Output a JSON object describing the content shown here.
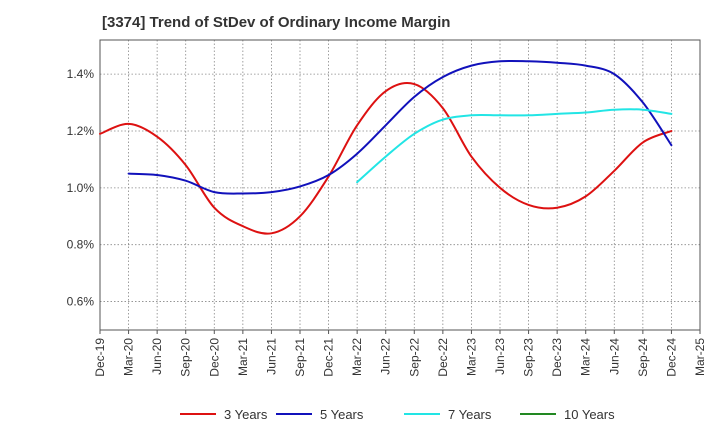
{
  "title": "[3374]  Trend of StDev of Ordinary Income Margin",
  "chart_data": {
    "type": "line",
    "title": "[3374]  Trend of StDev of Ordinary Income Margin",
    "xlabel": "",
    "ylabel": "",
    "x_tick_labels": [
      "Dec-19",
      "Mar-20",
      "Jun-20",
      "Sep-20",
      "Dec-20",
      "Mar-21",
      "Jun-21",
      "Sep-21",
      "Dec-21",
      "Mar-22",
      "Jun-22",
      "Sep-22",
      "Dec-22",
      "Mar-23",
      "Jun-23",
      "Sep-23",
      "Dec-23",
      "Mar-24",
      "Jun-24",
      "Sep-24",
      "Dec-24",
      "Mar-25"
    ],
    "y_ticks": [
      0.6,
      0.8,
      1.0,
      1.2,
      1.4
    ],
    "y_tick_labels": [
      "0.6%",
      "0.8%",
      "1.0%",
      "1.2%",
      "1.4%"
    ],
    "ylim": [
      0.5,
      1.52
    ],
    "grid": true,
    "legend_position": "bottom",
    "series": [
      {
        "name": "3 Years",
        "color": "#dd1111",
        "points": [
          [
            "Dec-19",
            1.19
          ],
          [
            "Mar-20",
            1.225
          ],
          [
            "Jun-20",
            1.18
          ],
          [
            "Sep-20",
            1.08
          ],
          [
            "Dec-20",
            0.93
          ],
          [
            "Mar-21",
            0.865
          ],
          [
            "Jun-21",
            0.84
          ],
          [
            "Sep-21",
            0.9
          ],
          [
            "Dec-21",
            1.04
          ],
          [
            "Mar-22",
            1.22
          ],
          [
            "Jun-22",
            1.34
          ],
          [
            "Sep-22",
            1.365
          ],
          [
            "Dec-22",
            1.28
          ],
          [
            "Mar-23",
            1.11
          ],
          [
            "Jun-23",
            1.0
          ],
          [
            "Sep-23",
            0.94
          ],
          [
            "Dec-23",
            0.93
          ],
          [
            "Mar-24",
            0.97
          ],
          [
            "Jun-24",
            1.06
          ],
          [
            "Sep-24",
            1.16
          ],
          [
            "Dec-24",
            1.2
          ]
        ]
      },
      {
        "name": "5 Years",
        "color": "#1111bb",
        "points": [
          [
            "Mar-20",
            1.05
          ],
          [
            "Jun-20",
            1.045
          ],
          [
            "Sep-20",
            1.025
          ],
          [
            "Dec-20",
            0.985
          ],
          [
            "Mar-21",
            0.98
          ],
          [
            "Jun-21",
            0.985
          ],
          [
            "Sep-21",
            1.005
          ],
          [
            "Dec-21",
            1.045
          ],
          [
            "Mar-22",
            1.12
          ],
          [
            "Jun-22",
            1.22
          ],
          [
            "Sep-22",
            1.32
          ],
          [
            "Dec-22",
            1.39
          ],
          [
            "Mar-23",
            1.43
          ],
          [
            "Jun-23",
            1.445
          ],
          [
            "Sep-23",
            1.445
          ],
          [
            "Dec-23",
            1.44
          ],
          [
            "Mar-24",
            1.43
          ],
          [
            "Jun-24",
            1.4
          ],
          [
            "Sep-24",
            1.3
          ],
          [
            "Dec-24",
            1.15
          ]
        ]
      },
      {
        "name": "7 Years",
        "color": "#22e5e5",
        "points": [
          [
            "Mar-22",
            1.02
          ],
          [
            "Jun-22",
            1.11
          ],
          [
            "Sep-22",
            1.19
          ],
          [
            "Dec-22",
            1.24
          ],
          [
            "Mar-23",
            1.255
          ],
          [
            "Jun-23",
            1.255
          ],
          [
            "Sep-23",
            1.255
          ],
          [
            "Dec-23",
            1.26
          ],
          [
            "Mar-24",
            1.265
          ],
          [
            "Jun-24",
            1.275
          ],
          [
            "Sep-24",
            1.275
          ],
          [
            "Dec-24",
            1.26
          ]
        ]
      },
      {
        "name": "10 Years",
        "color": "#228822",
        "points": []
      }
    ]
  }
}
